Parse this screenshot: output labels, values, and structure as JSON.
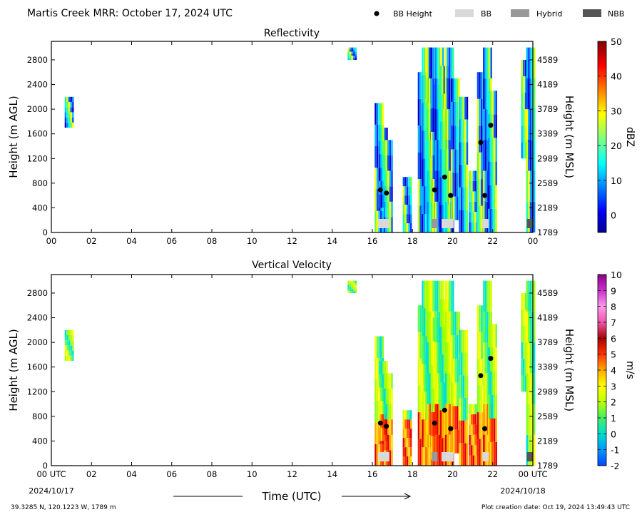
{
  "header": {
    "title": "Martis Creek MRR:  October 17, 2024 UTC",
    "legend": [
      {
        "label": "BB Height",
        "kind": "dot",
        "color": "#000000"
      },
      {
        "label": "BB",
        "kind": "box",
        "color": "#d9d9d9"
      },
      {
        "label": "Hybrid",
        "kind": "box",
        "color": "#999999"
      },
      {
        "label": "NBB",
        "kind": "box",
        "color": "#555555"
      }
    ]
  },
  "footer": {
    "location": "39.3285 N, 120.1223 W, 1789 m",
    "creation": "Plot creation date: Oct 19, 2024 13:49:43 UTC",
    "xlabel": "Time (UTC)",
    "date_start": "2024/10/17",
    "date_end": "2024/10/18"
  },
  "chart_data": [
    {
      "type": "heatmap",
      "title": "Reflectivity",
      "ylabel": "Height (m AGL)",
      "y2label": "Height (m MSL)",
      "xlim": [
        0,
        24
      ],
      "ylim": [
        0,
        3100
      ],
      "xticks": [
        "00",
        "02",
        "04",
        "06",
        "08",
        "10",
        "12",
        "14",
        "16",
        "18",
        "20",
        "22",
        "00"
      ],
      "yticks": [
        0,
        400,
        800,
        1200,
        1600,
        2000,
        2400,
        2800
      ],
      "y2ticks": [
        "1789",
        "2189",
        "2589",
        "2989",
        "3389",
        "3789",
        "4189",
        "4589"
      ],
      "colorbar": {
        "label": "dBZ",
        "range": [
          -5,
          50
        ],
        "ticks": [
          0,
          10,
          20,
          30,
          40,
          50
        ]
      },
      "bb_height": [
        {
          "t": 16.4,
          "h": 690
        },
        {
          "t": 16.7,
          "h": 640
        },
        {
          "t": 19.1,
          "h": 690
        },
        {
          "t": 19.6,
          "h": 900
        },
        {
          "t": 19.9,
          "h": 600
        },
        {
          "t": 21.4,
          "h": 1460
        },
        {
          "t": 21.6,
          "h": 600
        },
        {
          "t": 21.9,
          "h": 1740
        }
      ],
      "bb_type": [
        {
          "t0": 16.3,
          "t1": 16.85,
          "type": "BB"
        },
        {
          "t0": 18.95,
          "t1": 19.25,
          "type": "Hybrid"
        },
        {
          "t0": 19.45,
          "t1": 20.05,
          "type": "BB"
        },
        {
          "t0": 21.5,
          "t1": 21.8,
          "type": "BB"
        },
        {
          "t0": 23.7,
          "t1": 24.0,
          "type": "NBB"
        }
      ]
    },
    {
      "type": "heatmap",
      "title": "Vertical Velocity",
      "ylabel": "Height (m AGL)",
      "y2label": "Height (m MSL)",
      "xlim": [
        0,
        24
      ],
      "ylim": [
        0,
        3100
      ],
      "xticks": [
        "00 UTC",
        "02",
        "04",
        "06",
        "08",
        "10",
        "12",
        "14",
        "16",
        "18",
        "20",
        "22",
        "00 UTC"
      ],
      "yticks": [
        0,
        400,
        800,
        1200,
        1600,
        2000,
        2400,
        2800
      ],
      "y2ticks": [
        "1789",
        "2189",
        "2589",
        "2989",
        "3389",
        "3789",
        "4189",
        "4589"
      ],
      "colorbar": {
        "label": "m/s",
        "range": [
          -2,
          10
        ],
        "ticks": [
          -2,
          -1,
          0,
          1,
          2,
          3,
          4,
          5,
          6,
          7,
          8,
          9,
          10
        ]
      },
      "bb_height": [
        {
          "t": 16.4,
          "h": 690
        },
        {
          "t": 16.7,
          "h": 640
        },
        {
          "t": 19.1,
          "h": 690
        },
        {
          "t": 19.6,
          "h": 900
        },
        {
          "t": 19.9,
          "h": 600
        },
        {
          "t": 21.4,
          "h": 1460
        },
        {
          "t": 21.6,
          "h": 600
        },
        {
          "t": 21.9,
          "h": 1740
        }
      ],
      "bb_type": [
        {
          "t0": 16.3,
          "t1": 16.85,
          "type": "BB"
        },
        {
          "t0": 18.95,
          "t1": 19.25,
          "type": "Hybrid"
        },
        {
          "t0": 19.45,
          "t1": 20.05,
          "type": "BB"
        },
        {
          "t0": 21.5,
          "t1": 21.8,
          "type": "BB"
        },
        {
          "t0": 23.7,
          "t1": 24.0,
          "type": "NBB"
        }
      ]
    }
  ]
}
